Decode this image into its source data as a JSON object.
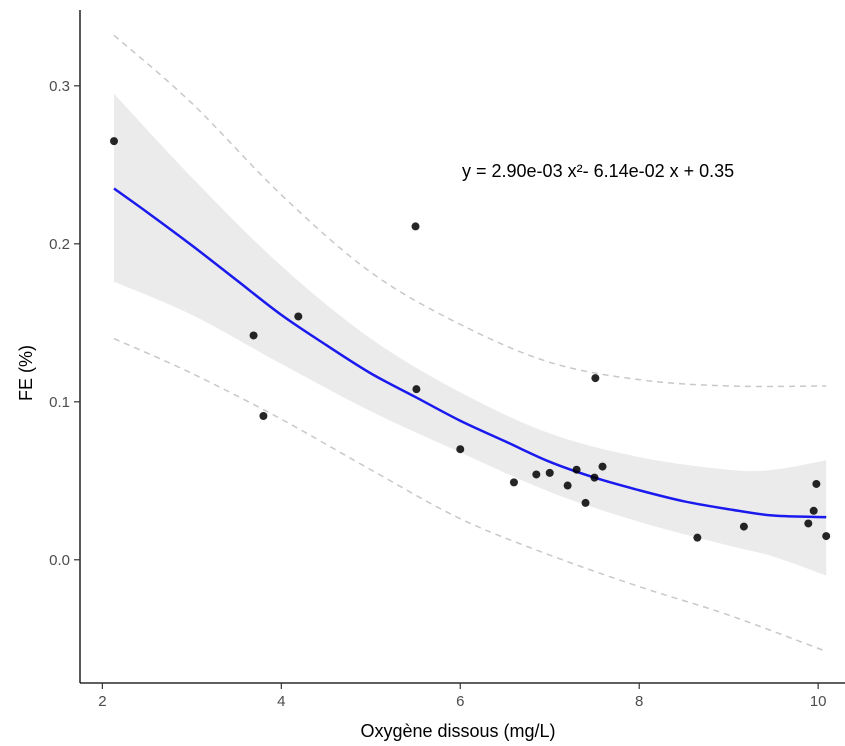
{
  "chart_data": {
    "type": "scatter",
    "title": "",
    "xlabel": "Oxygène dissous (mg/L)",
    "ylabel": "FE (%)",
    "xlim": [
      1.75,
      10.3
    ],
    "ylim": [
      -0.078,
      0.348
    ],
    "x_ticks": [
      2,
      4,
      6,
      8,
      10
    ],
    "y_ticks": [
      0.0,
      0.1,
      0.2,
      0.3
    ],
    "x_tick_labels": [
      "2",
      "4",
      "6",
      "8",
      "10"
    ],
    "y_tick_labels": [
      "0.0",
      "0.1",
      "0.2",
      "0.3"
    ],
    "grid": false,
    "legend": "none",
    "annotation": "y = 2.90e-03 x²- 6.14e-02 x + 0.35",
    "points": [
      {
        "x": 2.13,
        "y": 0.265
      },
      {
        "x": 3.69,
        "y": 0.142
      },
      {
        "x": 3.8,
        "y": 0.091
      },
      {
        "x": 4.19,
        "y": 0.154
      },
      {
        "x": 5.5,
        "y": 0.211
      },
      {
        "x": 5.51,
        "y": 0.108
      },
      {
        "x": 6.0,
        "y": 0.07
      },
      {
        "x": 6.6,
        "y": 0.049
      },
      {
        "x": 6.85,
        "y": 0.054
      },
      {
        "x": 7.0,
        "y": 0.055
      },
      {
        "x": 7.2,
        "y": 0.047
      },
      {
        "x": 7.3,
        "y": 0.057
      },
      {
        "x": 7.4,
        "y": 0.036
      },
      {
        "x": 7.5,
        "y": 0.052
      },
      {
        "x": 7.51,
        "y": 0.115
      },
      {
        "x": 7.59,
        "y": 0.059
      },
      {
        "x": 8.65,
        "y": 0.014
      },
      {
        "x": 9.17,
        "y": 0.021
      },
      {
        "x": 9.89,
        "y": 0.023
      },
      {
        "x": 9.95,
        "y": 0.031
      },
      {
        "x": 9.98,
        "y": 0.048
      },
      {
        "x": 10.09,
        "y": 0.015
      }
    ],
    "fit": {
      "x_range": [
        2.13,
        10.09
      ],
      "curve": [
        {
          "x": 2.13,
          "y": 0.235
        },
        {
          "x": 2.5,
          "y": 0.22
        },
        {
          "x": 3.0,
          "y": 0.199
        },
        {
          "x": 3.5,
          "y": 0.177
        },
        {
          "x": 4.0,
          "y": 0.155
        },
        {
          "x": 4.5,
          "y": 0.136
        },
        {
          "x": 5.0,
          "y": 0.118
        },
        {
          "x": 5.5,
          "y": 0.103
        },
        {
          "x": 6.0,
          "y": 0.088
        },
        {
          "x": 6.5,
          "y": 0.075
        },
        {
          "x": 7.0,
          "y": 0.062
        },
        {
          "x": 7.5,
          "y": 0.052
        },
        {
          "x": 8.0,
          "y": 0.044
        },
        {
          "x": 8.5,
          "y": 0.037
        },
        {
          "x": 9.0,
          "y": 0.032
        },
        {
          "x": 9.5,
          "y": 0.028
        },
        {
          "x": 10.09,
          "y": 0.027
        }
      ],
      "confidence_band": [
        {
          "x": 2.13,
          "lo": 0.176,
          "hi": 0.295
        },
        {
          "x": 3.0,
          "lo": 0.155,
          "hi": 0.242
        },
        {
          "x": 4.0,
          "lo": 0.124,
          "hi": 0.186
        },
        {
          "x": 5.0,
          "lo": 0.094,
          "hi": 0.14
        },
        {
          "x": 6.0,
          "lo": 0.068,
          "hi": 0.106
        },
        {
          "x": 7.0,
          "lo": 0.043,
          "hi": 0.08
        },
        {
          "x": 8.0,
          "lo": 0.024,
          "hi": 0.065
        },
        {
          "x": 9.0,
          "lo": 0.009,
          "hi": 0.057
        },
        {
          "x": 9.5,
          "lo": 0.002,
          "hi": 0.057
        },
        {
          "x": 10.09,
          "lo": -0.01,
          "hi": 0.063
        }
      ],
      "prediction_band": [
        {
          "x": 2.13,
          "lo": 0.14,
          "hi": 0.332
        },
        {
          "x": 3.0,
          "lo": 0.118,
          "hi": 0.289
        },
        {
          "x": 4.0,
          "lo": 0.089,
          "hi": 0.231
        },
        {
          "x": 5.0,
          "lo": 0.057,
          "hi": 0.182
        },
        {
          "x": 6.0,
          "lo": 0.026,
          "hi": 0.149
        },
        {
          "x": 7.0,
          "lo": 0.003,
          "hi": 0.125
        },
        {
          "x": 8.0,
          "lo": -0.017,
          "hi": 0.114
        },
        {
          "x": 9.0,
          "lo": -0.035,
          "hi": 0.11
        },
        {
          "x": 10.09,
          "lo": -0.058,
          "hi": 0.11
        }
      ]
    },
    "colors": {
      "fit_line": "#1a1aee",
      "confidence_fill": "#ebebeb",
      "prediction_line": "#c8c8c8",
      "point": "#000000",
      "axis": "#000000"
    }
  }
}
